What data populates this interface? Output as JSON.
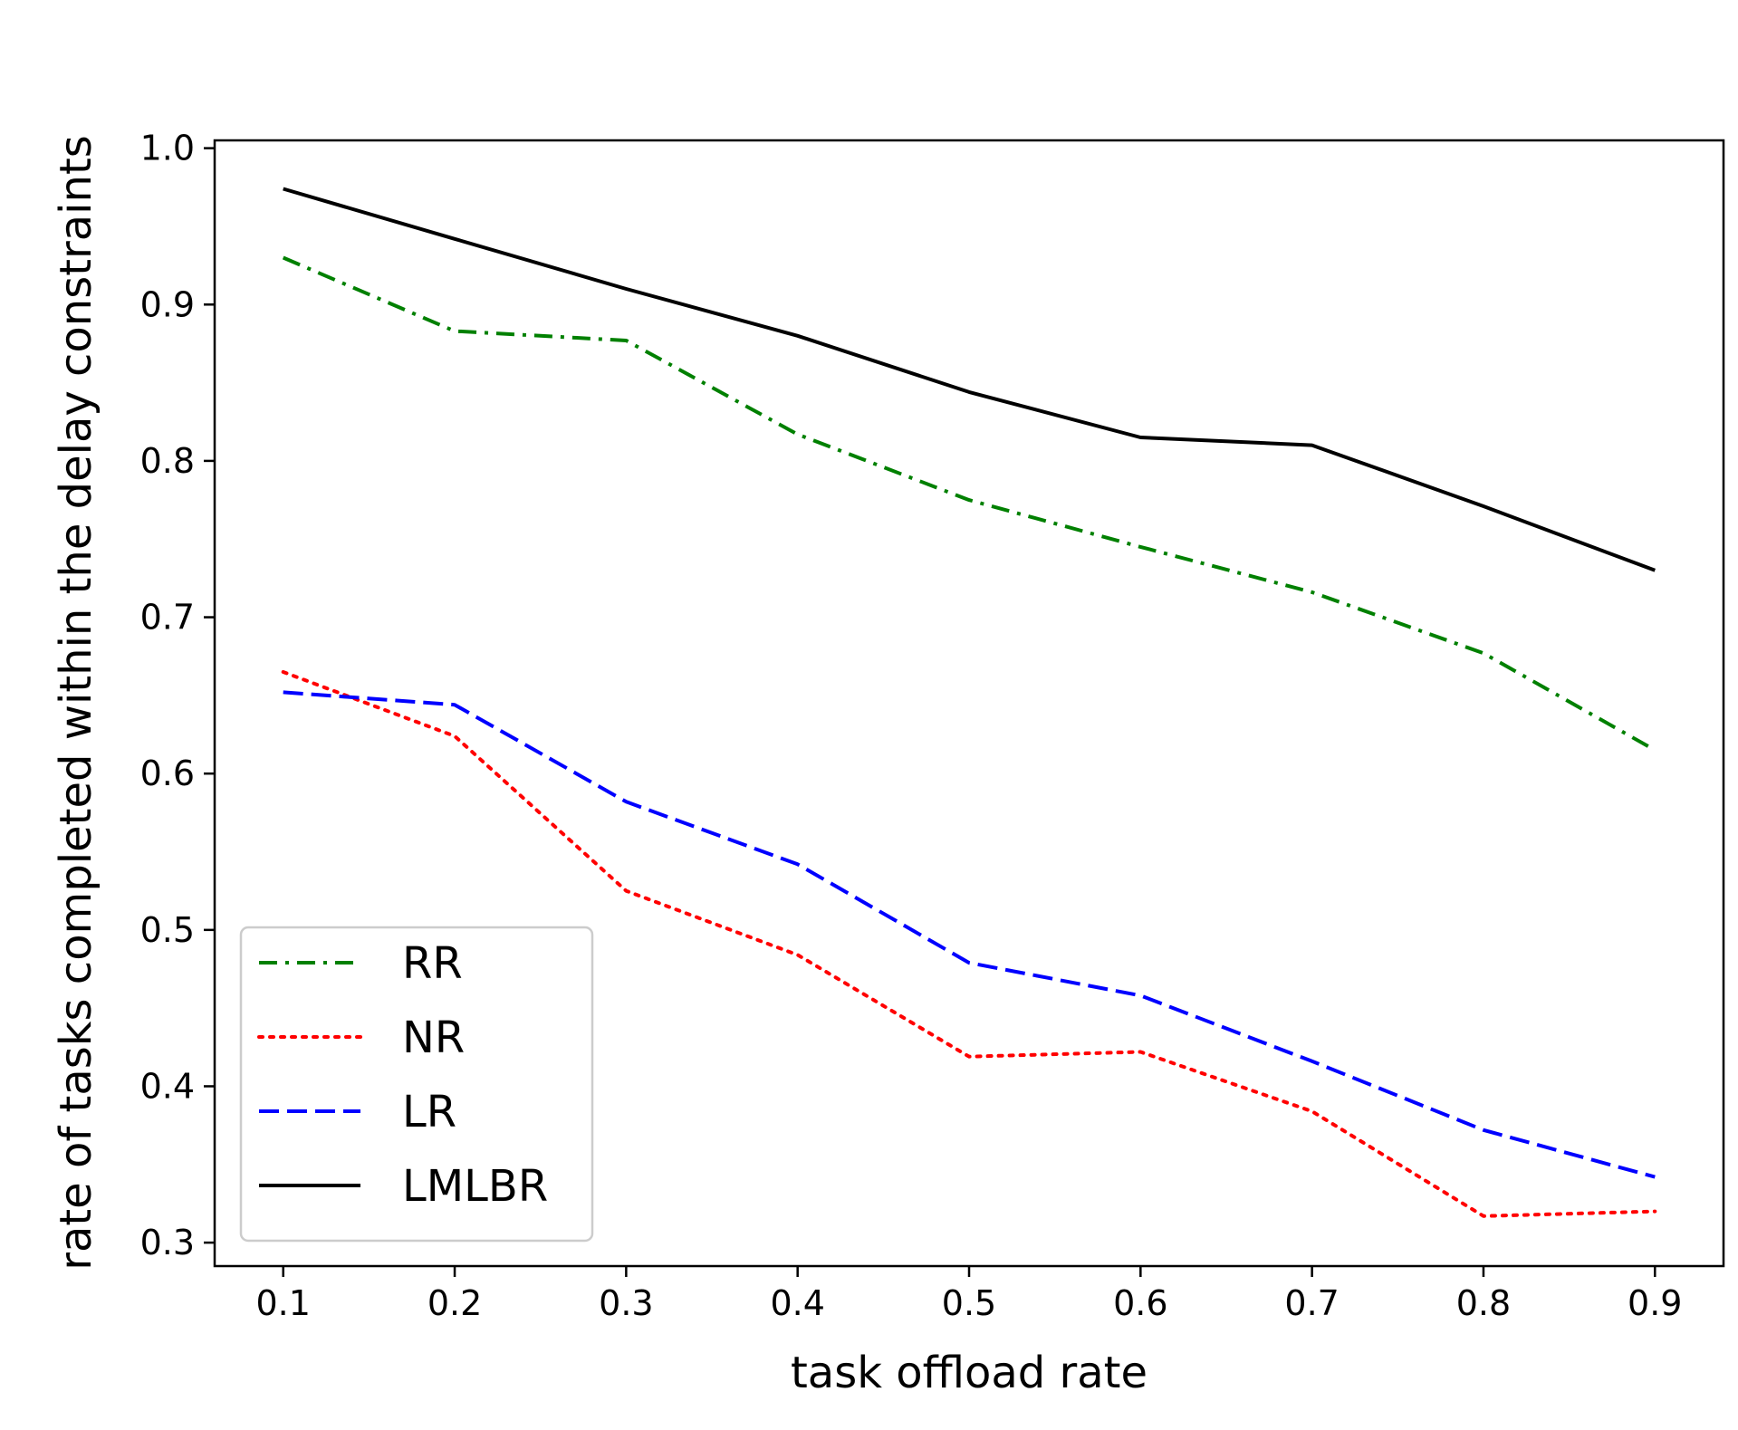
{
  "chart_data": {
    "type": "line",
    "title": "",
    "xlabel": "task offload rate",
    "ylabel": "rate of tasks completed within the delay constraints",
    "x": [
      0.1,
      0.2,
      0.3,
      0.4,
      0.5,
      0.6,
      0.7,
      0.8,
      0.9
    ],
    "xlim": [
      0.06,
      0.94
    ],
    "ylim": [
      0.285,
      1.005
    ],
    "xticks": [
      0.1,
      0.2,
      0.3,
      0.4,
      0.5,
      0.6,
      0.7,
      0.8,
      0.9
    ],
    "xtick_labels": [
      "0.1",
      "0.2",
      "0.3",
      "0.4",
      "0.5",
      "0.6",
      "0.7",
      "0.8",
      "0.9"
    ],
    "yticks": [
      0.3,
      0.4,
      0.5,
      0.6,
      0.7,
      0.8,
      0.9,
      1.0
    ],
    "ytick_labels": [
      "0.3",
      "0.4",
      "0.5",
      "0.6",
      "0.7",
      "0.8",
      "0.9",
      "1.0"
    ],
    "grid": false,
    "legend_position": "lower-left",
    "series": [
      {
        "name": "RR",
        "color": "#008000",
        "style": "dashdot",
        "values": [
          0.93,
          0.883,
          0.877,
          0.817,
          0.775,
          0.745,
          0.716,
          0.677,
          0.615
        ]
      },
      {
        "name": "NR",
        "color": "#ff0000",
        "style": "dotted",
        "values": [
          0.665,
          0.624,
          0.525,
          0.484,
          0.419,
          0.422,
          0.384,
          0.317,
          0.32
        ]
      },
      {
        "name": "LR",
        "color": "#0000ff",
        "style": "dashed",
        "values": [
          0.652,
          0.644,
          0.582,
          0.542,
          0.479,
          0.458,
          0.416,
          0.372,
          0.342
        ]
      },
      {
        "name": "LMLBR",
        "color": "#000000",
        "style": "solid",
        "values": [
          0.974,
          0.942,
          0.91,
          0.88,
          0.844,
          0.815,
          0.81,
          0.771,
          0.73
        ]
      }
    ]
  }
}
